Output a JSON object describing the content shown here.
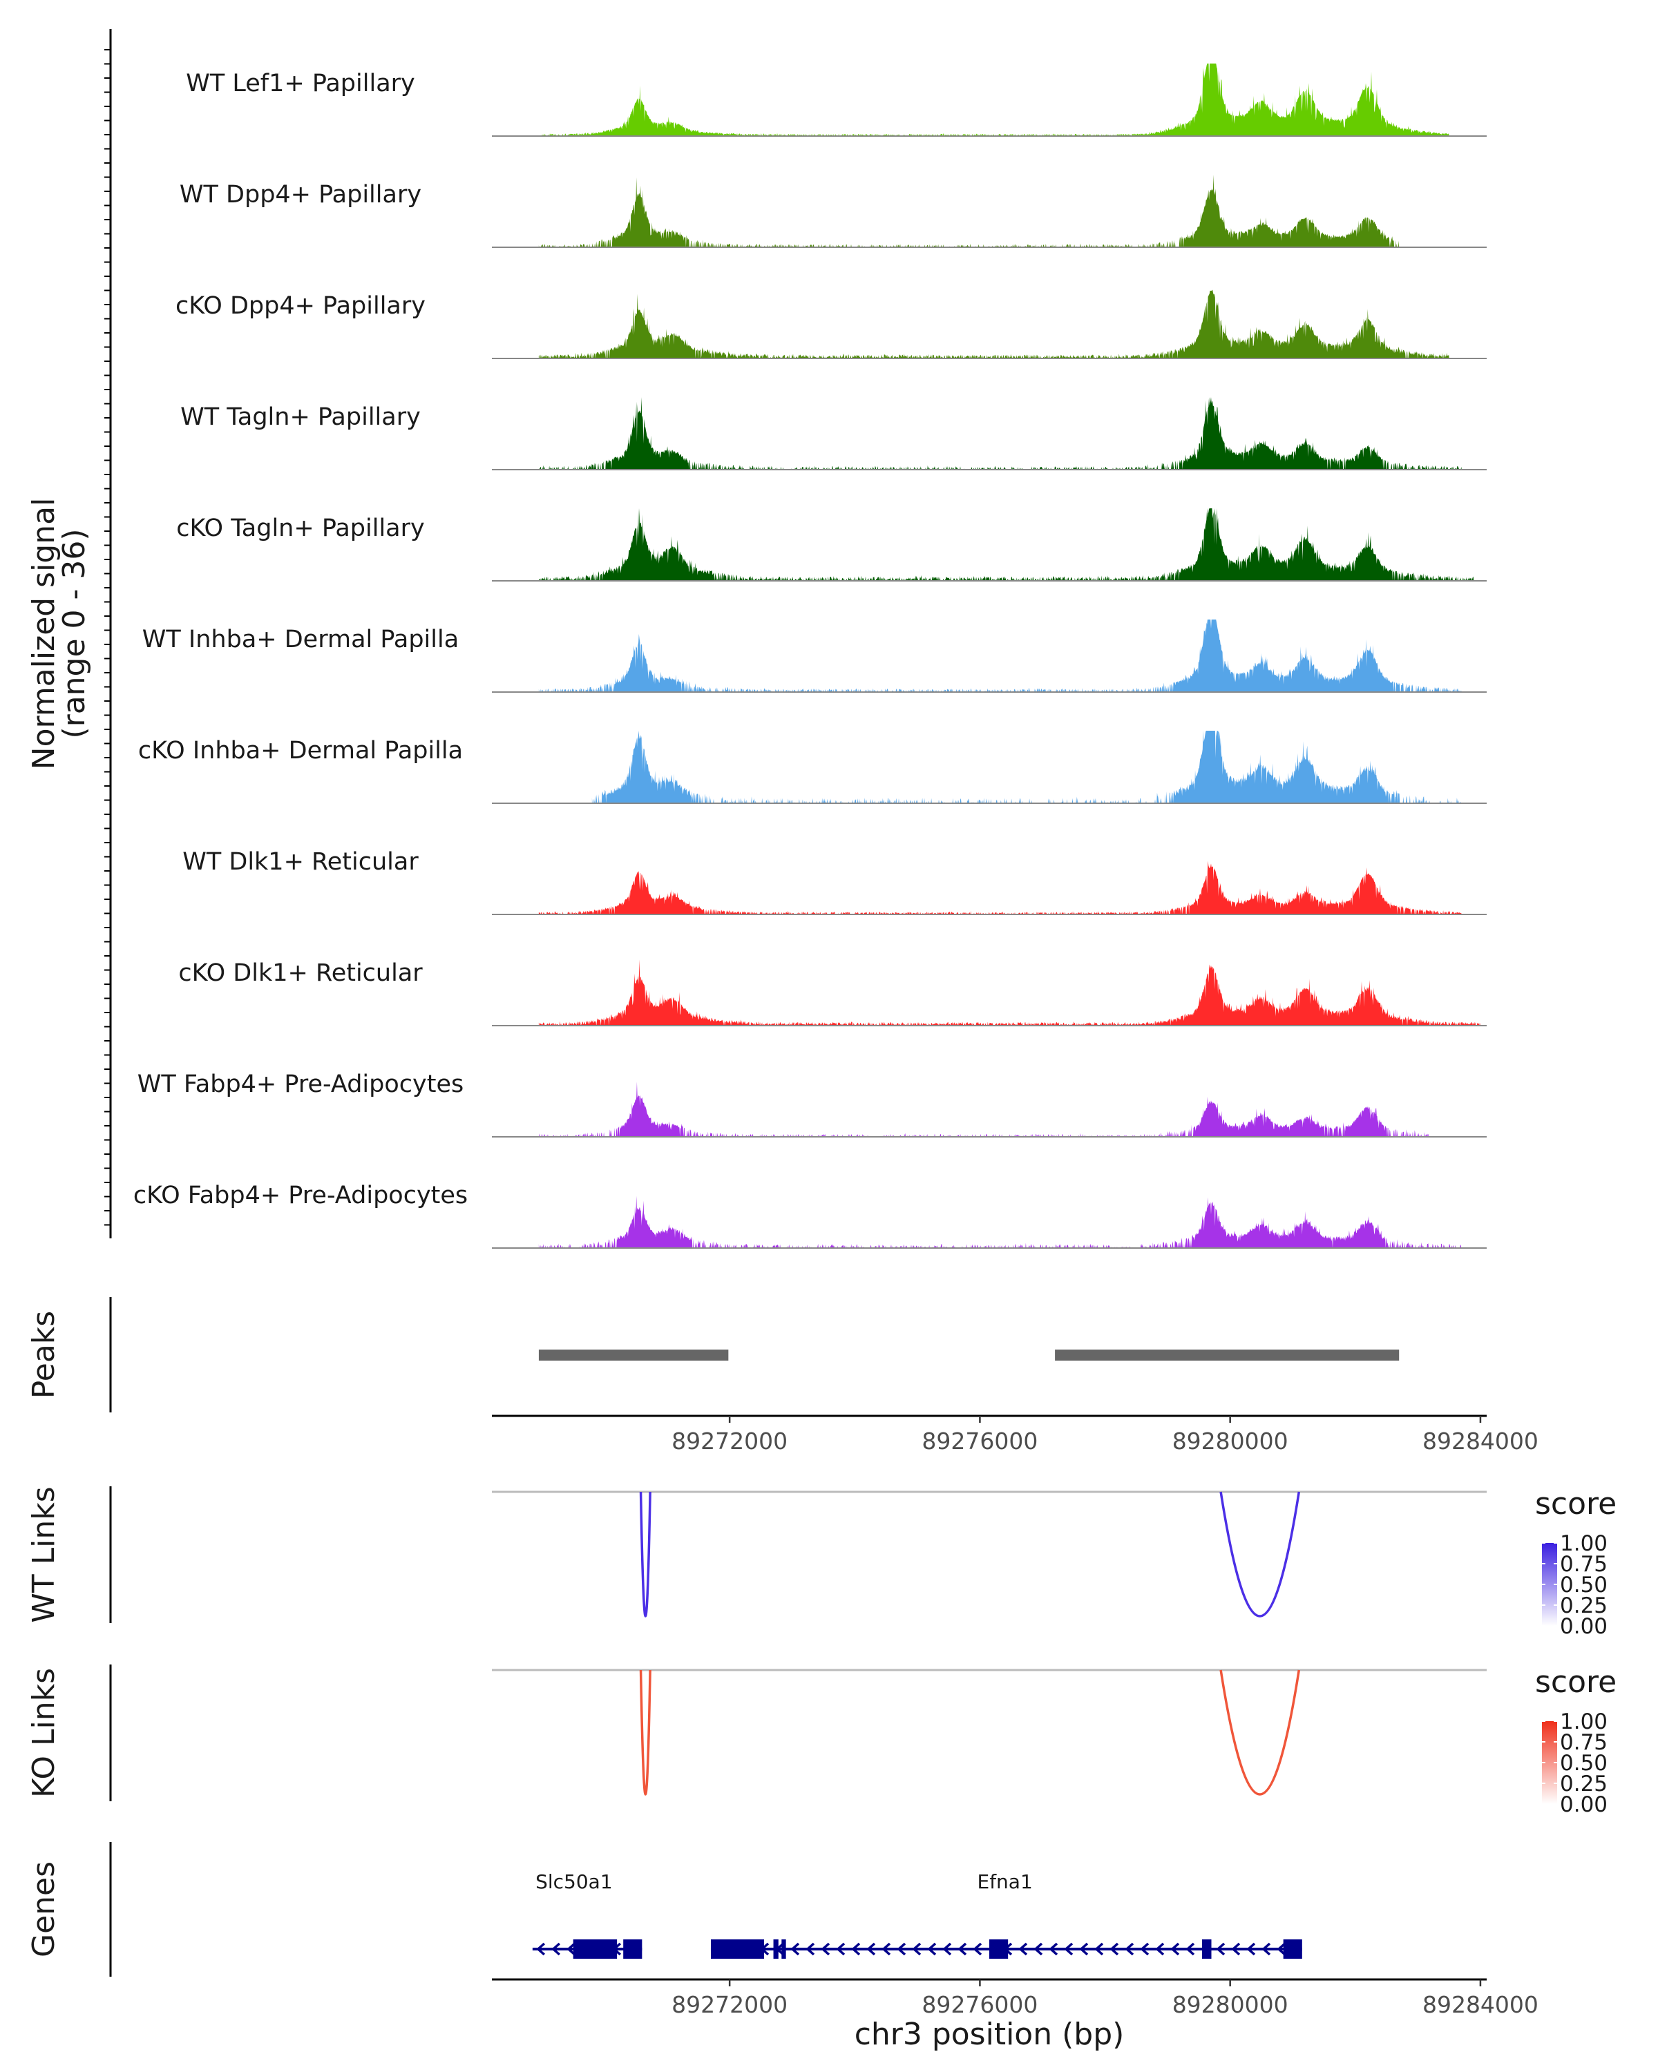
{
  "chart_data": {
    "type": "genome-tracks",
    "region": {
      "chrom": "chr3",
      "start": 89268200,
      "end": 89284100
    },
    "xlabel": "chr3 position (bp)",
    "x_ticks": [
      89272000,
      89276000,
      89280000,
      89284000
    ],
    "coverage": {
      "ylabel_line1": "Normalized signal",
      "ylabel_line2": "(range 0 - 36)",
      "range": [
        0,
        36
      ],
      "tracks": [
        {
          "name": "WT Lef1+ Papillary",
          "color": "#66cc00",
          "profile": "wt_papillary_lef1"
        },
        {
          "name": "WT Dpp4+ Papillary",
          "color": "#4f8a0b",
          "profile": "wt_papillary"
        },
        {
          "name": "cKO Dpp4+ Papillary",
          "color": "#4f8a0b",
          "profile": "cko_papillary"
        },
        {
          "name": "WT Tagln+ Papillary",
          "color": "#005a00",
          "profile": "wt_tagln"
        },
        {
          "name": "cKO Tagln+ Papillary",
          "color": "#005a00",
          "profile": "cko_tagln"
        },
        {
          "name": "WT Inhba+ Dermal Papilla",
          "color": "#56a5e8",
          "profile": "wt_dp"
        },
        {
          "name": "cKO Inhba+ Dermal Papilla",
          "color": "#56a5e8",
          "profile": "cko_dp"
        },
        {
          "name": "WT Dlk1+ Reticular",
          "color": "#ff2a2a",
          "profile": "wt_ret"
        },
        {
          "name": "cKO Dlk1+ Reticular",
          "color": "#ff2a2a",
          "profile": "cko_ret"
        },
        {
          "name": "WT Fabp4+ Pre-Adipocytes",
          "color": "#a633e8",
          "profile": "wt_adipo"
        },
        {
          "name": "cKO Fabp4+ Pre-Adipocytes",
          "color": "#a633e8",
          "profile": "cko_adipo"
        }
      ],
      "peak_summits": [
        {
          "pos": 89270550,
          "height": 0.8
        },
        {
          "pos": 89271100,
          "height": 0.4
        },
        {
          "pos": 89279700,
          "height": 1.0
        },
        {
          "pos": 89280500,
          "height": 0.55
        },
        {
          "pos": 89281200,
          "height": 0.7
        },
        {
          "pos": 89282200,
          "height": 0.8
        }
      ]
    },
    "peaks": {
      "label": "Peaks",
      "color": "#666666",
      "intervals": [
        [
          89268950,
          89271980
        ],
        [
          89277200,
          89282700
        ]
      ]
    },
    "links": [
      {
        "label": "WT Links",
        "color": "#4b2fe6",
        "legend_title": "score",
        "legend_ticks": [
          "1.00",
          "0.75",
          "0.50",
          "0.25",
          "0.00"
        ],
        "legend_color_max": "#3a1fe0",
        "arcs": [
          {
            "start": 89270580,
            "end": 89270730,
            "score": 1.0
          },
          {
            "start": 89279850,
            "end": 89281100,
            "score": 1.0
          }
        ]
      },
      {
        "label": "KO Links",
        "color": "#f0563a",
        "legend_title": "score",
        "legend_ticks": [
          "1.00",
          "0.75",
          "0.50",
          "0.25",
          "0.00"
        ],
        "legend_color_max": "#ef2f1a",
        "arcs": [
          {
            "start": 89270580,
            "end": 89270730,
            "score": 1.0
          },
          {
            "start": 89279850,
            "end": 89281100,
            "score": 1.0
          }
        ]
      }
    ],
    "genes": {
      "label": "Genes",
      "color": "#00008b",
      "models": [
        {
          "name": "Slc50a1",
          "strand": "-",
          "start": 89268850,
          "end": 89270600,
          "exons": [
            [
              89269500,
              89270200
            ],
            [
              89270300,
              89270600
            ]
          ]
        },
        {
          "name": "Efna1",
          "strand": "-",
          "start": 89271700,
          "end": 89281150,
          "exons": [
            [
              89271700,
              89272550
            ],
            [
              89272700,
              89272780
            ],
            [
              89272830,
              89272900
            ],
            [
              89276150,
              89276450
            ],
            [
              89279550,
              89279700
            ],
            [
              89280850,
              89281150
            ]
          ]
        }
      ]
    }
  }
}
